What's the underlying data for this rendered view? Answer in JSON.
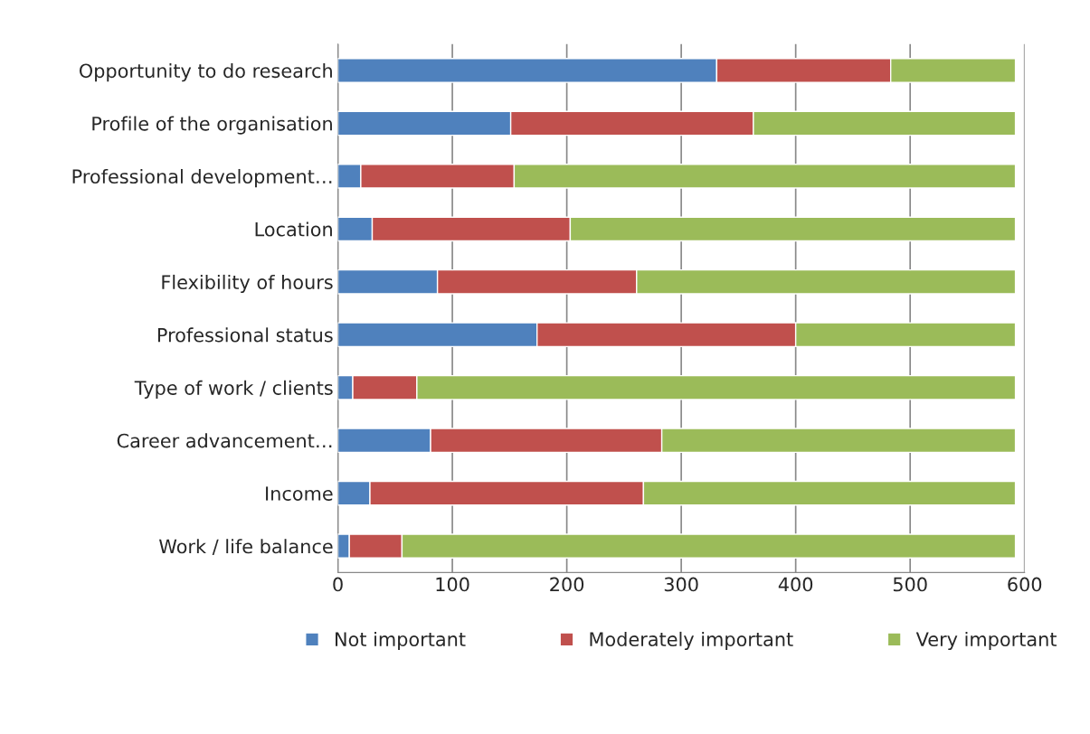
{
  "chart_data": {
    "type": "bar",
    "orientation": "horizontal",
    "stacked": true,
    "categories": [
      "Opportunity to do research",
      "Profile of the organisation",
      "Professional development…",
      "Location",
      "Flexibility of hours",
      "Professional status",
      "Type of work / clients",
      "Career advancement…",
      "Income",
      "Work / life balance"
    ],
    "series": [
      {
        "name": "Not important",
        "color": "#4f81bd",
        "values": [
          331,
          151,
          20,
          30,
          87,
          174,
          13,
          81,
          28,
          10
        ]
      },
      {
        "name": "Moderately important",
        "color": "#c0504d",
        "values": [
          152,
          212,
          134,
          173,
          174,
          226,
          56,
          202,
          239,
          46
        ]
      },
      {
        "name": "Very important",
        "color": "#9bbb59",
        "values": [
          109,
          229,
          438,
          389,
          331,
          192,
          523,
          309,
          325,
          536
        ]
      }
    ],
    "xlim": [
      0,
      600
    ],
    "xticks": [
      0,
      100,
      200,
      300,
      400,
      500,
      600
    ],
    "grid": "x",
    "legend": "bottom"
  }
}
